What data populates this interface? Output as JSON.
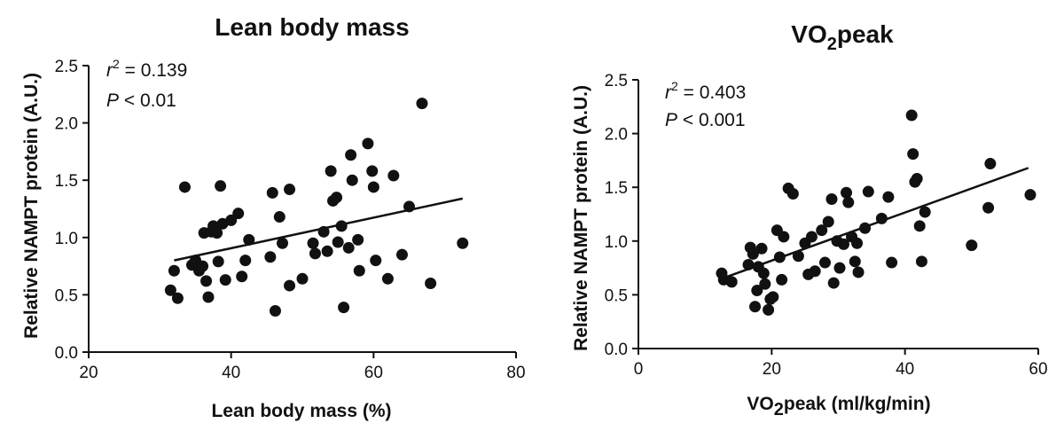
{
  "chart_data": [
    {
      "type": "scatter",
      "title": "Lean body mass",
      "xlabel": "Lean body mass (%)",
      "ylabel": "Relative NAMPT protein (A.U.)",
      "xlim": [
        20,
        80
      ],
      "ylim": [
        0,
        2.5
      ],
      "xticks": [
        20,
        40,
        60,
        80
      ],
      "yticks": [
        0.0,
        0.5,
        1.0,
        1.5,
        2.0,
        2.5
      ],
      "ytick_labels": [
        "0.0",
        "0.5",
        "1.0",
        "1.5",
        "2.0",
        "2.5"
      ],
      "stats": {
        "r2_symbol": "r",
        "r2_exp": "2",
        "r2_text": " = 0.139",
        "p_symbol": "P",
        "p_text": " < 0.01"
      },
      "fit": {
        "x": [
          32,
          72.5
        ],
        "y": [
          0.8,
          1.34
        ]
      },
      "points": [
        [
          31.5,
          0.54
        ],
        [
          32,
          0.71
        ],
        [
          32.5,
          0.47
        ],
        [
          33.5,
          1.44
        ],
        [
          34.5,
          0.76
        ],
        [
          35,
          0.8
        ],
        [
          35.5,
          0.71
        ],
        [
          36,
          0.75
        ],
        [
          36.2,
          1.04
        ],
        [
          36.5,
          0.62
        ],
        [
          36.8,
          0.48
        ],
        [
          37.2,
          1.05
        ],
        [
          37.5,
          1.1
        ],
        [
          38,
          1.04
        ],
        [
          38.2,
          0.79
        ],
        [
          38.5,
          1.45
        ],
        [
          38.8,
          1.12
        ],
        [
          39.2,
          0.63
        ],
        [
          40,
          1.15
        ],
        [
          41,
          1.21
        ],
        [
          41.5,
          0.66
        ],
        [
          42,
          0.8
        ],
        [
          42.5,
          0.98
        ],
        [
          45.5,
          0.83
        ],
        [
          45.8,
          1.39
        ],
        [
          46.2,
          0.36
        ],
        [
          46.8,
          1.18
        ],
        [
          47.2,
          0.95
        ],
        [
          48.2,
          0.58
        ],
        [
          48.2,
          1.42
        ],
        [
          50,
          0.64
        ],
        [
          51.5,
          0.95
        ],
        [
          51.8,
          0.86
        ],
        [
          53,
          1.05
        ],
        [
          53.5,
          0.88
        ],
        [
          54,
          1.58
        ],
        [
          54.3,
          1.32
        ],
        [
          54.8,
          1.35
        ],
        [
          55,
          0.96
        ],
        [
          55.5,
          1.1
        ],
        [
          55.8,
          0.39
        ],
        [
          56.5,
          0.91
        ],
        [
          56.8,
          1.72
        ],
        [
          57,
          1.5
        ],
        [
          57.8,
          0.98
        ],
        [
          58,
          0.71
        ],
        [
          59.2,
          1.82
        ],
        [
          59.8,
          1.58
        ],
        [
          60,
          1.44
        ],
        [
          60.3,
          0.8
        ],
        [
          62,
          0.64
        ],
        [
          62.8,
          1.54
        ],
        [
          64,
          0.85
        ],
        [
          65,
          1.27
        ],
        [
          66.8,
          2.17
        ],
        [
          68,
          0.6
        ],
        [
          72.5,
          0.95
        ]
      ]
    },
    {
      "type": "scatter",
      "title_main": "VO",
      "title_sub": "2",
      "title_rest": "peak",
      "xlabel_main": "VO",
      "xlabel_sub": "2",
      "xlabel_rest": "peak (ml/kg/min)",
      "ylabel": "Relative NAMPT protein (A.U.)",
      "xlim": [
        0,
        60
      ],
      "ylim": [
        0,
        2.5
      ],
      "xticks": [
        0,
        20,
        40,
        60
      ],
      "yticks": [
        0.0,
        0.5,
        1.0,
        1.5,
        2.0,
        2.5
      ],
      "ytick_labels": [
        "0.0",
        "0.5",
        "1.0",
        "1.5",
        "2.0",
        "2.5"
      ],
      "stats": {
        "r2_symbol": "r",
        "r2_exp": "2",
        "r2_text": " = 0.403",
        "p_symbol": "P",
        "p_text": " < 0.001"
      },
      "fit": {
        "x": [
          12.5,
          58.5
        ],
        "y": [
          0.65,
          1.68
        ]
      },
      "points": [
        [
          12.5,
          0.7
        ],
        [
          12.8,
          0.64
        ],
        [
          14,
          0.62
        ],
        [
          16.5,
          0.78
        ],
        [
          16.8,
          0.94
        ],
        [
          17.2,
          0.88
        ],
        [
          17.5,
          0.39
        ],
        [
          17.8,
          0.54
        ],
        [
          18,
          0.76
        ],
        [
          18.5,
          0.93
        ],
        [
          18.8,
          0.7
        ],
        [
          19,
          0.6
        ],
        [
          19.5,
          0.36
        ],
        [
          19.8,
          0.46
        ],
        [
          20.2,
          0.48
        ],
        [
          20.8,
          1.1
        ],
        [
          21.2,
          0.85
        ],
        [
          21.5,
          0.64
        ],
        [
          21.8,
          1.04
        ],
        [
          22.5,
          1.49
        ],
        [
          23.2,
          1.44
        ],
        [
          24,
          0.86
        ],
        [
          25,
          0.98
        ],
        [
          25.5,
          0.69
        ],
        [
          26,
          1.04
        ],
        [
          26.5,
          0.72
        ],
        [
          27.5,
          1.1
        ],
        [
          28,
          0.8
        ],
        [
          28.5,
          1.18
        ],
        [
          29,
          1.39
        ],
        [
          29.3,
          0.61
        ],
        [
          29.8,
          1.0
        ],
        [
          30.2,
          0.75
        ],
        [
          30.8,
          0.97
        ],
        [
          31.2,
          1.45
        ],
        [
          31.5,
          1.36
        ],
        [
          32,
          1.04
        ],
        [
          32.5,
          0.81
        ],
        [
          32.8,
          0.98
        ],
        [
          33,
          0.71
        ],
        [
          34,
          1.12
        ],
        [
          34.5,
          1.46
        ],
        [
          36.5,
          1.21
        ],
        [
          37.5,
          1.41
        ],
        [
          38,
          0.8
        ],
        [
          41,
          2.17
        ],
        [
          41.2,
          1.81
        ],
        [
          41.5,
          1.55
        ],
        [
          41.8,
          1.58
        ],
        [
          42.2,
          1.14
        ],
        [
          42.5,
          0.81
        ],
        [
          43,
          1.27
        ],
        [
          50,
          0.96
        ],
        [
          52.5,
          1.31
        ],
        [
          52.8,
          1.72
        ],
        [
          58.8,
          1.43
        ]
      ]
    }
  ]
}
